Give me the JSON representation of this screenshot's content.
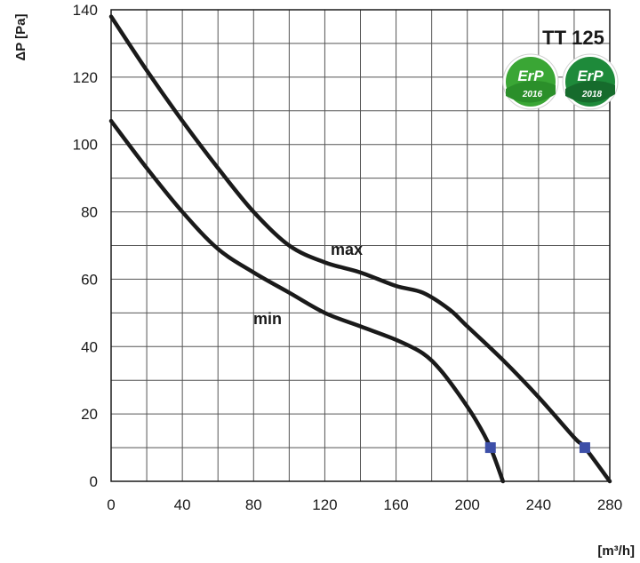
{
  "chart_data": {
    "type": "line",
    "title": "TT 125",
    "xlabel": "[m³/h]",
    "ylabel": "ΔP [Pa]",
    "xlim": [
      0,
      280
    ],
    "ylim": [
      0,
      140
    ],
    "x_ticks": [
      0,
      40,
      80,
      120,
      160,
      200,
      240,
      280
    ],
    "y_ticks": [
      0,
      20,
      40,
      60,
      80,
      100,
      120,
      140
    ],
    "grid": true,
    "series": [
      {
        "name": "max",
        "color": "#1a1a1a",
        "points": [
          [
            0,
            138
          ],
          [
            20,
            122
          ],
          [
            40,
            107
          ],
          [
            60,
            93
          ],
          [
            80,
            80
          ],
          [
            100,
            70
          ],
          [
            120,
            65
          ],
          [
            140,
            62
          ],
          [
            160,
            58
          ],
          [
            175,
            56
          ],
          [
            190,
            51
          ],
          [
            200,
            46
          ],
          [
            220,
            36
          ],
          [
            240,
            25
          ],
          [
            260,
            13
          ],
          [
            266,
            10
          ],
          [
            280,
            0
          ]
        ],
        "marker": {
          "x": 266,
          "y": 10
        }
      },
      {
        "name": "min",
        "color": "#1a1a1a",
        "points": [
          [
            0,
            107
          ],
          [
            20,
            93
          ],
          [
            40,
            80
          ],
          [
            60,
            69
          ],
          [
            80,
            62
          ],
          [
            100,
            56
          ],
          [
            120,
            50
          ],
          [
            140,
            46
          ],
          [
            160,
            42
          ],
          [
            175,
            38
          ],
          [
            185,
            33
          ],
          [
            195,
            26
          ],
          [
            205,
            18
          ],
          [
            213,
            10
          ],
          [
            220,
            0
          ]
        ],
        "marker": {
          "x": 213,
          "y": 10
        }
      }
    ],
    "marker_color": "#3d4fa8",
    "badges": [
      {
        "text": "ErP",
        "year": "2016",
        "color": "#3aa635"
      },
      {
        "text": "ErP",
        "year": "2018",
        "color": "#1e8a3a"
      }
    ]
  }
}
